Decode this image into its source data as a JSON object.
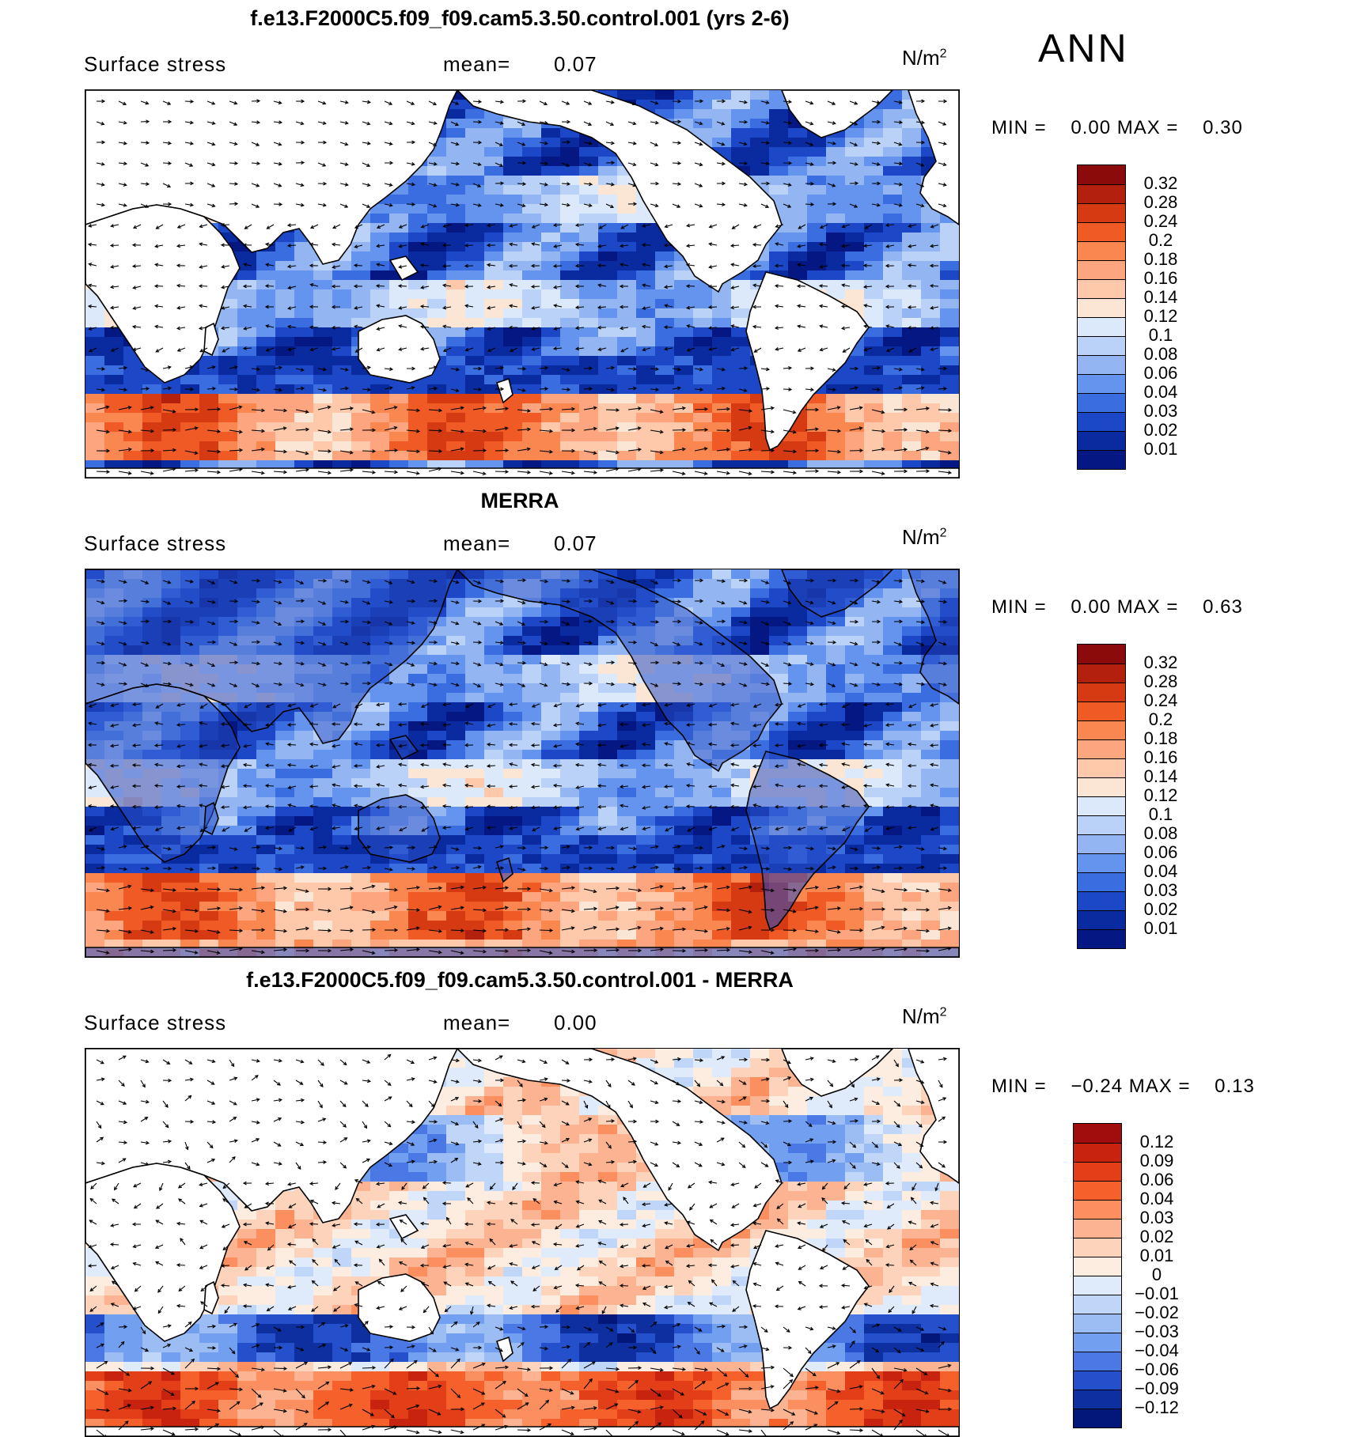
{
  "season": "ANN",
  "panels": [
    {
      "id": "model",
      "title": "f.e13.F2000C5.f09_f09.cam5.3.50.control.001 (yrs 2-6)",
      "variable": "Surface stress",
      "mean_label": "mean=",
      "mean_value": "0.07",
      "units": "N/m",
      "units_exp": "2",
      "min_label": "MIN =",
      "min_value": "0.00",
      "max_label": "MAX =",
      "max_value": "0.30",
      "colorbar_labels": [
        "0.32",
        "0.28",
        "0.24",
        "0.2",
        "0.18",
        "0.16",
        "0.14",
        "0.12",
        "0.1",
        "0.08",
        "0.06",
        "0.04",
        "0.03",
        "0.02",
        "0.01"
      ],
      "colorbar_colors": [
        "#8b0a0a",
        "#b3200d",
        "#d63a12",
        "#f05a25",
        "#fa8650",
        "#fca57f",
        "#fdc9aa",
        "#fbe6d5",
        "#dbe9fa",
        "#bad2f8",
        "#93b6f2",
        "#6494ee",
        "#3a6de0",
        "#1c48c8",
        "#0a2aa0",
        "#041783"
      ]
    },
    {
      "id": "obs",
      "title": "MERRA",
      "variable": "Surface stress",
      "mean_label": "mean=",
      "mean_value": "0.07",
      "units": "N/m",
      "units_exp": "2",
      "min_label": "MIN =",
      "min_value": "0.00",
      "max_label": "MAX =",
      "max_value": "0.63",
      "colorbar_labels": [
        "0.32",
        "0.28",
        "0.24",
        "0.2",
        "0.18",
        "0.16",
        "0.14",
        "0.12",
        "0.1",
        "0.08",
        "0.06",
        "0.04",
        "0.03",
        "0.02",
        "0.01"
      ],
      "colorbar_colors": [
        "#8b0a0a",
        "#b3200d",
        "#d63a12",
        "#f05a25",
        "#fa8650",
        "#fca57f",
        "#fdc9aa",
        "#fbe6d5",
        "#dbe9fa",
        "#bad2f8",
        "#93b6f2",
        "#6494ee",
        "#3a6de0",
        "#1c48c8",
        "#0a2aa0",
        "#041783"
      ]
    },
    {
      "id": "diff",
      "title": "f.e13.F2000C5.f09_f09.cam5.3.50.control.001 - MERRA",
      "variable": "Surface stress",
      "mean_label": "mean=",
      "mean_value": "0.00",
      "units": "N/m",
      "units_exp": "2",
      "min_label": "MIN =",
      "min_value": "−0.24",
      "max_label": "MAX =",
      "max_value": "0.13",
      "colorbar_labels": [
        "0.12",
        "0.09",
        "0.06",
        "0.04",
        "0.03",
        "0.02",
        "0.01",
        "0",
        "−0.01",
        "−0.02",
        "−0.03",
        "−0.04",
        "−0.06",
        "−0.09",
        "−0.12"
      ],
      "colorbar_colors": [
        "#a10d0d",
        "#c7230f",
        "#e23e18",
        "#f5602b",
        "#fb8f60",
        "#fcb392",
        "#fdd3bb",
        "#fdece0",
        "#dfeafa",
        "#c0d6f8",
        "#9cbdf3",
        "#739ff0",
        "#4a78e4",
        "#2550cb",
        "#0d2f9f",
        "#03177a"
      ]
    }
  ]
}
